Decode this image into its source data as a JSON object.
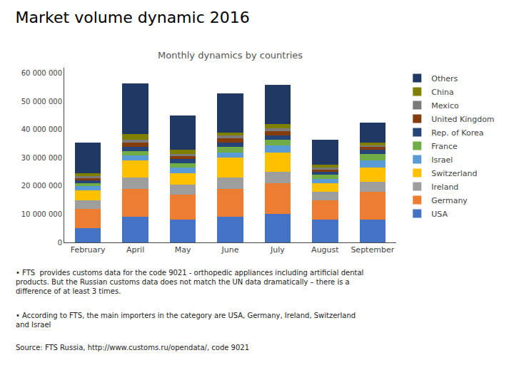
{
  "chart_data": {
    "type": "bar",
    "title": "Market volume dynamic 2016",
    "subtitle": "Monthly dynamics by countries",
    "annotations": [
      "• FTS  provides customs data for the code 9021 - orthopedic appliances including artificial dental\nproducts. But the Russian customs data does not match the UN data dramatically – there is a\ndifference of at least 3 times.",
      "• According to FTS, the main importers in the category are USA, Germany, Ireland, Switzerland\nand Israel",
      "Source: FTS Russia, http://www.customs.ru/opendata/, code 9021"
    ],
    "categories": [
      "February",
      "April",
      "May",
      "June",
      "July",
      "August",
      "September"
    ],
    "series": [
      {
        "name": "USA",
        "color": "#4472C4",
        "values": [
          5000,
          9000,
          8000,
          9000,
          10000,
          8000,
          8000
        ]
      },
      {
        "name": "Germany",
        "color": "#ED7D31",
        "values": [
          7000,
          10000,
          9000,
          10000,
          11000,
          7000,
          10000
        ]
      },
      {
        "name": "Ireland",
        "color": "#9E9E9E",
        "values": [
          3000,
          4000,
          3500,
          4000,
          4000,
          3000,
          3500
        ]
      },
      {
        "name": "Switzerland",
        "color": "#FFC000",
        "values": [
          3500,
          6000,
          4000,
          7000,
          7000,
          3000,
          5000
        ]
      },
      {
        "name": "Israel",
        "color": "#5B9BD5",
        "values": [
          1500,
          2000,
          2000,
          2000,
          2500,
          1500,
          2500
        ]
      },
      {
        "name": "France",
        "color": "#70AD47",
        "values": [
          1000,
          1500,
          1500,
          2000,
          2000,
          1500,
          2500
        ]
      },
      {
        "name": "Rep. of Korea",
        "color": "#264478",
        "values": [
          1000,
          1500,
          1500,
          1500,
          1500,
          1000,
          1500
        ]
      },
      {
        "name": "United Kingdom",
        "color": "#843C0C",
        "values": [
          1000,
          1500,
          1000,
          1500,
          1500,
          1000,
          1000
        ]
      },
      {
        "name": "Mexico",
        "color": "#7B7B7B",
        "values": [
          500,
          1000,
          1000,
          1000,
          1000,
          500,
          500
        ]
      },
      {
        "name": "China",
        "color": "#808000",
        "values": [
          1000,
          2000,
          1500,
          1000,
          1500,
          1000,
          1000
        ]
      },
      {
        "name": "Others",
        "color": "#1F3864",
        "values": [
          11000,
          18000,
          12000,
          14000,
          14000,
          9000,
          7000
        ]
      }
    ],
    "stacked": true,
    "ylim": [
      0,
      62000
    ],
    "yticks": [
      0,
      {
        "value": 10000,
        "label": "10 000 000"
      },
      {
        "value": 20000,
        "label": "20 000 000"
      },
      {
        "value": 30000,
        "label": "30 000 000"
      },
      {
        "value": 40000,
        "label": "40 000 000"
      },
      {
        "value": 50000,
        "label": "50 000 000"
      },
      {
        "value": 60000,
        "label": "60 000 000"
      }
    ],
    "grid": false,
    "legend": "upper right"
  }
}
